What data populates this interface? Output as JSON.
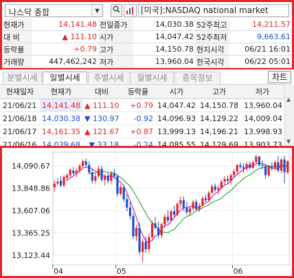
{
  "topbar": {
    "market": "나스닥 종합",
    "search_icon": "search-icon",
    "name": "[미국]:NASDAQ national market"
  },
  "quote": {
    "rows": [
      {
        "l1": "현재가",
        "v1": "14,141.48",
        "c1": "red",
        "l2": "전일종가",
        "v2": "14,030.38",
        "c2": "",
        "l3": "52주최고",
        "v3": "14,211.57",
        "c3": "red"
      },
      {
        "l1": "대 비",
        "v1": "▲ 111.10",
        "c1": "red",
        "l2": "시가",
        "v2": "14,047.42",
        "c2": "",
        "l3": "52주최저",
        "v3": "9,663.61",
        "c3": "blue"
      },
      {
        "l1": "등락률",
        "v1": "+0.79",
        "c1": "red",
        "l2": "고가",
        "v2": "14,150.78",
        "c2": "",
        "l3": "현지시각",
        "v3": "06/21 16:01",
        "c3": ""
      },
      {
        "l1": "거래량",
        "v1": "447,462,242",
        "c1": "",
        "l2": "저가",
        "v2": "13,960.04",
        "c2": "",
        "l3": "한국시각",
        "v3": "06/22 05:01",
        "c3": ""
      }
    ]
  },
  "tabs": [
    "분별시세",
    "일별시세",
    "주별시세",
    "월별시세",
    "종목정보"
  ],
  "active_tab": "일별시세",
  "chart_button": "차트",
  "daily": {
    "headers": [
      "현재일자",
      "현재가",
      "대비",
      "등락율",
      "시가",
      "고가",
      "저가"
    ],
    "rows": [
      {
        "date": "21/06/21",
        "close": "14,141.48",
        "chg": "▲ 111.10",
        "rate": "+0.79",
        "open": "14,047.42",
        "high": "14,150.78",
        "low": "13,960.04",
        "dir": "up"
      },
      {
        "date": "21/06/18",
        "close": "14,030.38",
        "chg": "▼ 130.97",
        "rate": "-0.92",
        "open": "14,096.93",
        "high": "14,129.22",
        "low": "14,009.04",
        "dir": "down"
      },
      {
        "date": "21/06/17",
        "close": "14,161.35",
        "chg": "▲ 121.67",
        "rate": "+0.87",
        "open": "13,999.13",
        "high": "14,196.21",
        "low": "13,998.93",
        "dir": "up"
      },
      {
        "date": "21/06/16",
        "close": "14,039.68",
        "chg": "▼ 33.18",
        "rate": "-0.24",
        "open": "14,085.55",
        "high": "14,129.69",
        "low": "13,903.73",
        "dir": "down"
      }
    ]
  },
  "chart_data": {
    "type": "candlestick",
    "y_ticks": [
      "14,090.67",
      "13,848.86",
      "13,607.06",
      "13,365.25",
      "13,123.44"
    ],
    "y_tick_values": [
      14090.67,
      13848.86,
      13607.06,
      13365.25,
      13123.44
    ],
    "x_labels": [
      "04",
      "05",
      "06"
    ],
    "x_label_index": [
      0,
      20,
      57
    ],
    "ylim": [
      13020,
      14240
    ],
    "up_color": "#e2242a",
    "down_color": "#1f4fc7",
    "ma_short_color": "#b400b4",
    "ma_long_color": "#109a10",
    "ohlc": [
      [
        13860,
        13930,
        13810,
        13900
      ],
      [
        13900,
        13960,
        13880,
        13920
      ],
      [
        13930,
        13980,
        13860,
        13880
      ],
      [
        13880,
        13990,
        13860,
        13970
      ],
      [
        13960,
        14010,
        13930,
        13990
      ],
      [
        13990,
        14060,
        13960,
        14050
      ],
      [
        14040,
        14080,
        13990,
        14010
      ],
      [
        14010,
        14060,
        13970,
        14040
      ],
      [
        14040,
        14110,
        14010,
        14090
      ],
      [
        14090,
        14160,
        14060,
        14140
      ],
      [
        14140,
        14170,
        14080,
        14100
      ],
      [
        14100,
        14140,
        14000,
        14020
      ],
      [
        14020,
        14050,
        13900,
        13930
      ],
      [
        13930,
        14010,
        13900,
        13980
      ],
      [
        13980,
        14090,
        13960,
        14060
      ],
      [
        14060,
        14090,
        13920,
        13940
      ],
      [
        13940,
        14000,
        13880,
        13980
      ],
      [
        13980,
        14010,
        13900,
        13930
      ],
      [
        13930,
        14030,
        13900,
        14010
      ],
      [
        14010,
        14060,
        13950,
        13980
      ],
      [
        13980,
        14000,
        13760,
        13790
      ],
      [
        13790,
        13890,
        13770,
        13860
      ],
      [
        13860,
        13880,
        13700,
        13730
      ],
      [
        13730,
        13780,
        13600,
        13640
      ],
      [
        13640,
        13700,
        13510,
        13550
      ],
      [
        13550,
        13580,
        13300,
        13330
      ],
      [
        13330,
        13450,
        13280,
        13420
      ],
      [
        13420,
        13480,
        13130,
        13160
      ],
      [
        13160,
        13300,
        13050,
        13270
      ],
      [
        13270,
        13330,
        13150,
        13190
      ],
      [
        13190,
        13360,
        13150,
        13320
      ],
      [
        13320,
        13500,
        13300,
        13470
      ],
      [
        13470,
        13540,
        13400,
        13420
      ],
      [
        13420,
        13490,
        13310,
        13340
      ],
      [
        13340,
        13480,
        13310,
        13460
      ],
      [
        13460,
        13570,
        13420,
        13540
      ],
      [
        13540,
        13610,
        13470,
        13500
      ],
      [
        13500,
        13620,
        13480,
        13600
      ],
      [
        13600,
        13660,
        13540,
        13560
      ],
      [
        13560,
        13700,
        13550,
        13680
      ],
      [
        13680,
        13760,
        13640,
        13720
      ],
      [
        13720,
        13760,
        13600,
        13640
      ],
      [
        13640,
        13700,
        13560,
        13590
      ],
      [
        13590,
        13650,
        13550,
        13630
      ],
      [
        13630,
        13720,
        13600,
        13700
      ],
      [
        13700,
        13730,
        13610,
        13620
      ],
      [
        13620,
        13690,
        13590,
        13660
      ],
      [
        13660,
        13760,
        13650,
        13740
      ],
      [
        13740,
        13780,
        13700,
        13720
      ],
      [
        13720,
        13820,
        13700,
        13800
      ],
      [
        13800,
        13890,
        13790,
        13870
      ],
      [
        13870,
        13900,
        13810,
        13830
      ],
      [
        13830,
        13880,
        13780,
        13850
      ],
      [
        13850,
        13940,
        13840,
        13920
      ],
      [
        13920,
        13980,
        13880,
        13950
      ],
      [
        13950,
        13990,
        13900,
        13930
      ],
      [
        13930,
        14010,
        13890,
        13990
      ],
      [
        13990,
        14060,
        13960,
        14030
      ],
      [
        14030,
        14110,
        14000,
        14100
      ],
      [
        14100,
        14130,
        14060,
        14080
      ],
      [
        14080,
        14120,
        14020,
        14060
      ],
      [
        14060,
        14130,
        14040,
        14110
      ],
      [
        14110,
        14140,
        14050,
        14070
      ],
      [
        14070,
        14150,
        14060,
        14130
      ],
      [
        14130,
        14210,
        14120,
        14190
      ],
      [
        14190,
        14200,
        14080,
        14100
      ],
      [
        14100,
        14150,
        14050,
        14090
      ],
      [
        14090,
        14110,
        13950,
        13990
      ],
      [
        13990,
        14100,
        13970,
        14080
      ],
      [
        14080,
        14130,
        14040,
        14060
      ],
      [
        14060,
        14150,
        14040,
        14130
      ],
      [
        14130,
        14200,
        14020,
        14040
      ],
      [
        14040,
        14170,
        14010,
        14160
      ],
      [
        14160,
        14200,
        13900,
        14020
      ],
      [
        14020,
        14150,
        14000,
        14140
      ]
    ]
  }
}
